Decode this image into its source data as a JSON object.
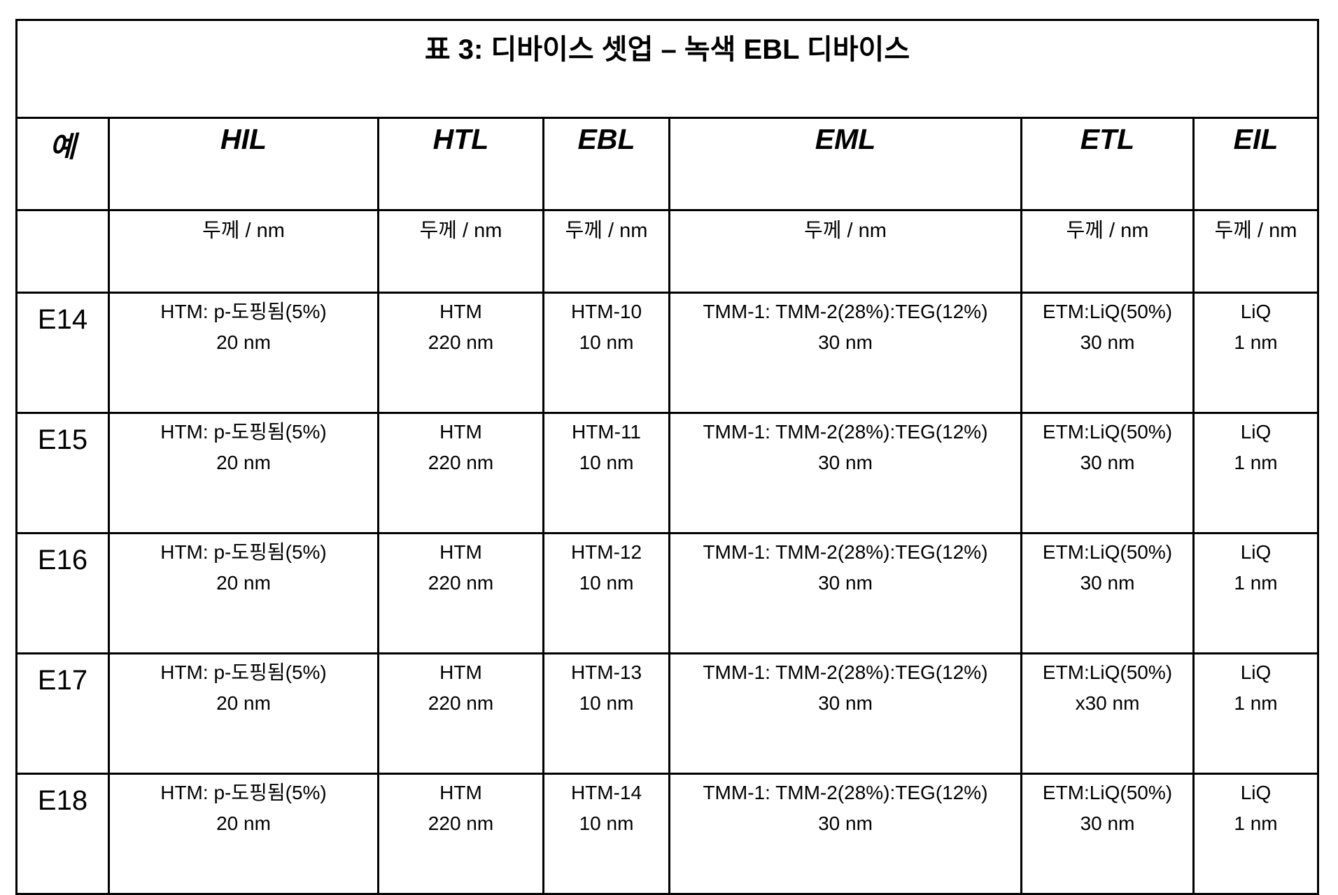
{
  "table": {
    "title": "표 3: 디바이스 셋업 – 녹색 EBL 디바이스",
    "headers": [
      "예",
      "HIL",
      "HTL",
      "EBL",
      "EML",
      "ETL",
      "EIL"
    ],
    "subheaders": [
      "",
      "두께 / nm",
      "두께 / nm",
      "두께 / nm",
      "두께 / nm",
      "두께 / nm",
      "두께 / nm"
    ],
    "rows": [
      {
        "example": "E14",
        "cells": [
          [
            "HTM: p-도핑됨(5%)",
            "20 nm"
          ],
          [
            "HTM",
            "220 nm"
          ],
          [
            "HTM-10",
            "10 nm"
          ],
          [
            "TMM-1: TMM-2(28%):TEG(12%)",
            "30 nm"
          ],
          [
            "ETM:LiQ(50%)",
            "30 nm"
          ],
          [
            "LiQ",
            "1 nm"
          ]
        ]
      },
      {
        "example": "E15",
        "cells": [
          [
            "HTM: p-도핑됨(5%)",
            "20 nm"
          ],
          [
            "HTM",
            "220 nm"
          ],
          [
            "HTM-11",
            "10 nm"
          ],
          [
            "TMM-1: TMM-2(28%):TEG(12%)",
            "30 nm"
          ],
          [
            "ETM:LiQ(50%)",
            "30 nm"
          ],
          [
            "LiQ",
            "1 nm"
          ]
        ]
      },
      {
        "example": "E16",
        "cells": [
          [
            "HTM: p-도핑됨(5%)",
            "20 nm"
          ],
          [
            "HTM",
            "220 nm"
          ],
          [
            "HTM-12",
            "10 nm"
          ],
          [
            "TMM-1: TMM-2(28%):TEG(12%)",
            "30 nm"
          ],
          [
            "ETM:LiQ(50%)",
            "30 nm"
          ],
          [
            "LiQ",
            "1 nm"
          ]
        ]
      },
      {
        "example": "E17",
        "cells": [
          [
            "HTM: p-도핑됨(5%)",
            "20 nm"
          ],
          [
            "HTM",
            "220 nm"
          ],
          [
            "HTM-13",
            "10 nm"
          ],
          [
            "TMM-1: TMM-2(28%):TEG(12%)",
            "30 nm"
          ],
          [
            "ETM:LiQ(50%)",
            "x30 nm"
          ],
          [
            "LiQ",
            "1 nm"
          ]
        ]
      },
      {
        "example": "E18",
        "cells": [
          [
            "HTM: p-도핑됨(5%)",
            "20 nm"
          ],
          [
            "HTM",
            "220 nm"
          ],
          [
            "HTM-14",
            "10 nm"
          ],
          [
            "TMM-1: TMM-2(28%):TEG(12%)",
            "30 nm"
          ],
          [
            "ETM:LiQ(50%)",
            "30 nm"
          ],
          [
            "LiQ",
            "1 nm"
          ]
        ]
      }
    ]
  }
}
